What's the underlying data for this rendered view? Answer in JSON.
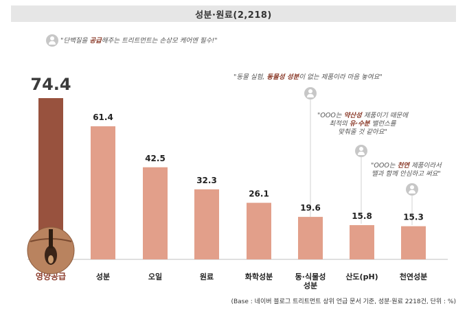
{
  "title": "성분·원료(2,218)",
  "chart_data": {
    "type": "bar",
    "categories": [
      "영양공급",
      "성분",
      "오일",
      "원료",
      "화학성분",
      "동·식물성\n성분",
      "산도(pH)",
      "천연성분"
    ],
    "values": [
      74.4,
      61.4,
      42.5,
      32.3,
      26.1,
      19.6,
      15.8,
      15.3
    ],
    "value_labels": [
      "74.4",
      "61.4",
      "42.5",
      "32.3",
      "26.1",
      "19.6",
      "15.8",
      "15.3"
    ],
    "highlight_index": 0,
    "ylim": [
      0,
      80
    ],
    "colors": {
      "highlight": "#98523e",
      "bar": "#e29f8a",
      "highlight_label": "#8b3b2a",
      "axis": "#bfbfbf"
    }
  },
  "quotes": [
    {
      "parts": [
        [
          "\"단백질을 ",
          false
        ],
        [
          "공급",
          true
        ],
        [
          "해주는 트리트먼트는 손상모 케어엔 필수!\"",
          false
        ]
      ]
    },
    {
      "parts": [
        [
          "\"동물 실험, ",
          false
        ],
        [
          "동물성 성분",
          true
        ],
        [
          "이 없는 제품이라 마음 놓여요\"",
          false
        ]
      ]
    },
    {
      "parts": [
        [
          "\"OOO는 ",
          false
        ],
        [
          "약산성",
          true
        ],
        [
          " 제품이기 때문에",
          false
        ],
        [
          "\n최적의 ",
          false
        ],
        [
          "유·수분",
          true
        ],
        [
          " 밸런스를",
          false
        ],
        [
          "\n맞춰줄 것 같아요\"",
          false
        ]
      ]
    },
    {
      "parts": [
        [
          "\"OOO는 ",
          false
        ],
        [
          "천연",
          true
        ],
        [
          " 제품이라서",
          false
        ],
        [
          "\n뗄과 함께 안심하고 써요\"",
          false
        ]
      ]
    }
  ],
  "icons": [
    "hair-follicle-icon",
    "person-icon"
  ],
  "footnote": "(Base : 네이버 블로그 트리트먼트 상위 언급 문서 기준, 성분·원료 2218건, 단위 : %)"
}
